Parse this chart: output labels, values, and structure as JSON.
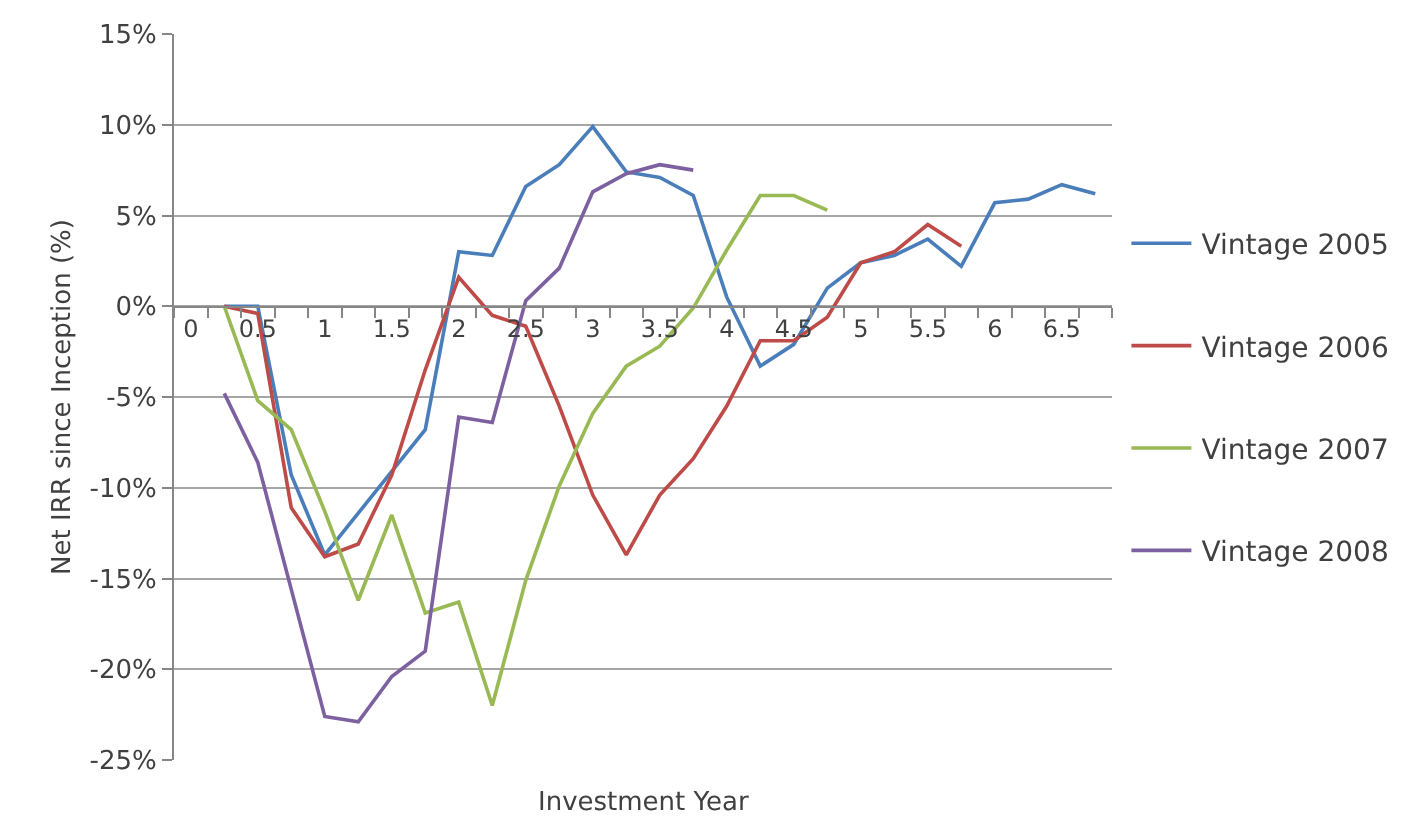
{
  "chart_data": {
    "type": "line",
    "xlabel": "Investment Year",
    "ylabel": "Net IRR since Inception (%)",
    "x": [
      0.25,
      0.5,
      0.75,
      1,
      1.25,
      1.5,
      1.75,
      2,
      2.25,
      2.5,
      2.75,
      3,
      3.25,
      3.5,
      3.75,
      4,
      4.25,
      4.5,
      4.75,
      5,
      5.25,
      5.5,
      5.75,
      6,
      6.25,
      6.5,
      6.75
    ],
    "series": [
      {
        "name": "Vintage 2005",
        "color": "#4a7ebb",
        "values": [
          0,
          0,
          -9.3,
          -13.7,
          -11.4,
          -9.1,
          -6.8,
          3.0,
          2.8,
          6.6,
          7.8,
          9.9,
          7.4,
          7.1,
          6.1,
          0.5,
          -3.3,
          -2.1,
          1.0,
          2.4,
          2.8,
          3.7,
          2.2,
          5.7,
          5.9,
          6.7,
          6.2
        ]
      },
      {
        "name": "Vintage 2006",
        "color": "#be4b48",
        "values": [
          0,
          -0.4,
          -11.1,
          -13.8,
          -13.1,
          -9.3,
          -3.5,
          1.6,
          -0.5,
          -1.1,
          -5.5,
          -10.4,
          -13.7,
          -10.4,
          -8.4,
          -5.5,
          -1.9,
          -1.9,
          -0.6,
          2.4,
          3.0,
          4.5,
          3.3,
          null,
          null,
          null,
          null
        ]
      },
      {
        "name": "Vintage 2007",
        "color": "#98b954",
        "values": [
          0,
          -5.2,
          -6.8,
          -11.3,
          -16.2,
          -11.5,
          -16.9,
          -16.3,
          -22.0,
          -15.1,
          -9.9,
          -5.9,
          -3.3,
          -2.2,
          -0.1,
          3.1,
          6.1,
          6.1,
          5.3,
          null,
          null,
          null,
          null,
          null,
          null,
          null,
          null
        ]
      },
      {
        "name": "Vintage 2008",
        "color": "#7d60a0",
        "values": [
          -4.8,
          -8.6,
          -15.6,
          -22.6,
          -22.9,
          -20.4,
          -19.0,
          -6.1,
          -6.4,
          0.3,
          2.1,
          6.3,
          7.3,
          7.8,
          7.5,
          null,
          null,
          null,
          null,
          null,
          null,
          null,
          null,
          null,
          null,
          null,
          null
        ]
      }
    ],
    "xlim": [
      -0.125,
      6.875
    ],
    "xticks": [
      0,
      0.5,
      1,
      1.5,
      2,
      2.5,
      3,
      3.5,
      4,
      4.5,
      5,
      5.5,
      6,
      6.5,
      {
        "value": -0.125,
        "label": null
      },
      {
        "value": 0.125,
        "label": null
      },
      {
        "value": 0.375,
        "label": null
      },
      {
        "value": 0.625,
        "label": null
      },
      {
        "value": 0.875,
        "label": null
      },
      {
        "value": 1.125,
        "label": null
      },
      {
        "value": 1.375,
        "label": null
      },
      {
        "value": 1.625,
        "label": null
      },
      {
        "value": 1.875,
        "label": null
      },
      {
        "value": 2.125,
        "label": null
      },
      {
        "value": 2.375,
        "label": null
      },
      {
        "value": 2.625,
        "label": null
      },
      {
        "value": 2.875,
        "label": null
      },
      {
        "value": 3.125,
        "label": null
      },
      {
        "value": 3.375,
        "label": null
      },
      {
        "value": 3.625,
        "label": null
      },
      {
        "value": 3.875,
        "label": null
      },
      {
        "value": 4.125,
        "label": null
      },
      {
        "value": 4.375,
        "label": null
      },
      {
        "value": 4.625,
        "label": null
      },
      {
        "value": 4.875,
        "label": null
      },
      {
        "value": 5.125,
        "label": null
      },
      {
        "value": 5.375,
        "label": null
      },
      {
        "value": 5.625,
        "label": null
      },
      {
        "value": 5.875,
        "label": null
      },
      {
        "value": 6.125,
        "label": null
      },
      {
        "value": 6.375,
        "label": null
      },
      {
        "value": 6.625,
        "label": null
      },
      {
        "value": 6.875,
        "label": null
      }
    ],
    "ylim": [
      -25,
      15
    ],
    "yticks": [
      {
        "value": -25,
        "label": "-25%"
      },
      {
        "value": -20,
        "label": "-20%"
      },
      {
        "value": -15,
        "label": "-15%"
      },
      {
        "value": -10,
        "label": "-10%"
      },
      {
        "value": -5,
        "label": "-5%"
      },
      {
        "value": 0,
        "label": "0%"
      },
      {
        "value": 5,
        "label": "5%"
      },
      {
        "value": 10,
        "label": "10%"
      },
      {
        "value": 15,
        "label": "15%"
      }
    ],
    "grid": "y",
    "legend": "right",
    "marker": "none",
    "line_style": "solid"
  }
}
